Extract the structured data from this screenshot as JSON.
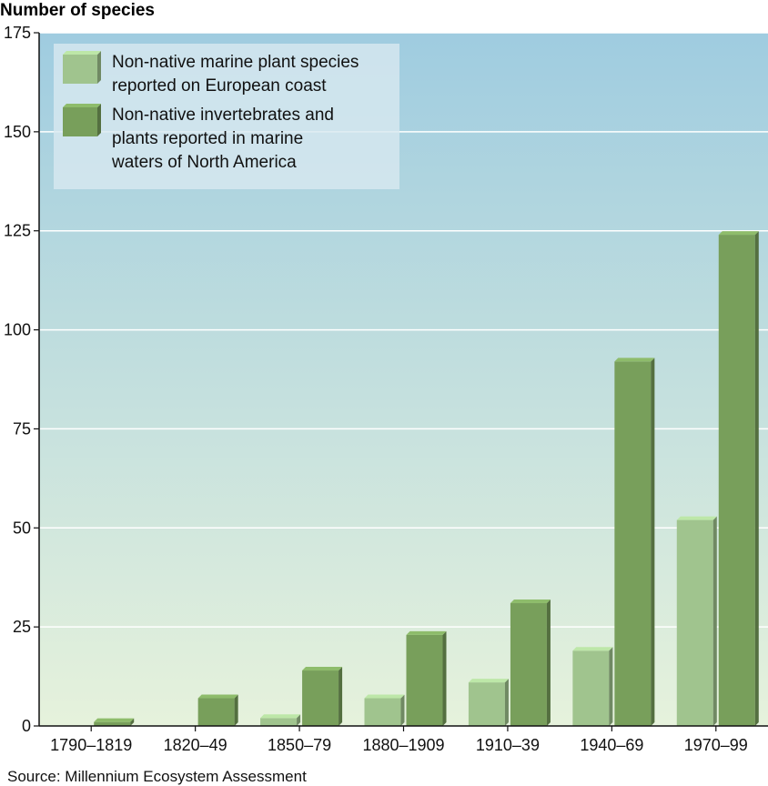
{
  "chart_data": {
    "type": "bar",
    "ylabel": "Number of species",
    "xlabel": "",
    "ylim": [
      0,
      175
    ],
    "yticks": [
      0,
      25,
      50,
      75,
      100,
      125,
      150,
      175
    ],
    "grid": true,
    "legend_placement": "top-left",
    "categories": [
      "1790–1819",
      "1820–49",
      "1850–79",
      "1880–1909",
      "1910–39",
      "1940–69",
      "1970–99"
    ],
    "series": [
      {
        "name": "Non-native marine plant species reported on European coast",
        "legend_lines": [
          "Non-native marine plant species",
          "reported on European coast"
        ],
        "color": "#a0c48e",
        "values": [
          0,
          0,
          2,
          7,
          11,
          19,
          52
        ]
      },
      {
        "name": "Non-native invertebrates and plants reported in marine waters of North America",
        "legend_lines": [
          "Non-native invertebrates and",
          "plants reported in marine",
          "waters of North America"
        ],
        "color": "#789f5b",
        "values": [
          1,
          7,
          14,
          23,
          31,
          92,
          124
        ]
      }
    ],
    "colors": {
      "background_top": "#9fcce0",
      "background_bottom": "#e6f2dc",
      "grid": "#ffffff",
      "legend_box": "#d8e9f0"
    }
  },
  "source": "Source: Millennium Ecosystem Assessment"
}
